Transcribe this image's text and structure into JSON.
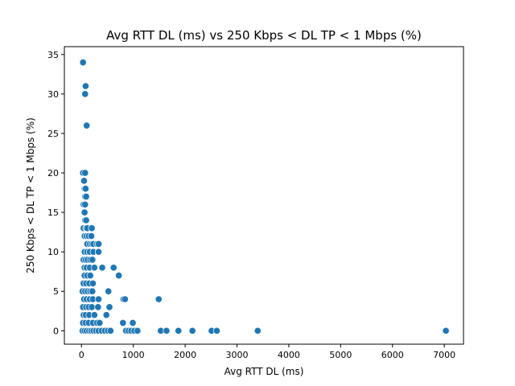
{
  "chart_data": {
    "type": "scatter",
    "title": "Avg RTT DL (ms) vs 250 Kbps < DL TP < 1 Mbps (%)",
    "xlabel": "Avg RTT DL (ms)",
    "ylabel": "250 Kbps < DL TP < 1 Mbps (%)",
    "xlim": [
      -330,
      7370
    ],
    "ylim": [
      -1.7,
      36.0
    ],
    "xticks": [
      0,
      1000,
      2000,
      3000,
      4000,
      5000,
      6000,
      7000
    ],
    "yticks": [
      0,
      5,
      10,
      15,
      20,
      25,
      30,
      35
    ],
    "grid": false,
    "marker_color": "#1f77b4",
    "marker_edge_color": "#ffffff",
    "points": [
      [
        30,
        34
      ],
      [
        80,
        31
      ],
      [
        70,
        30
      ],
      [
        100,
        26
      ],
      [
        30,
        20
      ],
      [
        70,
        20
      ],
      [
        50,
        19
      ],
      [
        60,
        18
      ],
      [
        80,
        18
      ],
      [
        70,
        17
      ],
      [
        90,
        17
      ],
      [
        40,
        16
      ],
      [
        70,
        16
      ],
      [
        60,
        15
      ],
      [
        70,
        14
      ],
      [
        90,
        14
      ],
      [
        40,
        13
      ],
      [
        90,
        13
      ],
      [
        110,
        13
      ],
      [
        200,
        13
      ],
      [
        60,
        12
      ],
      [
        100,
        12
      ],
      [
        140,
        12
      ],
      [
        190,
        12
      ],
      [
        110,
        11
      ],
      [
        160,
        11
      ],
      [
        200,
        11
      ],
      [
        230,
        11
      ],
      [
        300,
        11
      ],
      [
        330,
        11
      ],
      [
        60,
        10
      ],
      [
        110,
        10
      ],
      [
        160,
        10
      ],
      [
        230,
        10
      ],
      [
        330,
        10
      ],
      [
        40,
        9
      ],
      [
        80,
        9
      ],
      [
        120,
        9
      ],
      [
        170,
        9
      ],
      [
        210,
        9
      ],
      [
        60,
        8
      ],
      [
        100,
        8
      ],
      [
        160,
        8
      ],
      [
        250,
        8
      ],
      [
        400,
        8
      ],
      [
        620,
        8
      ],
      [
        60,
        7
      ],
      [
        110,
        7
      ],
      [
        170,
        7
      ],
      [
        720,
        7
      ],
      [
        40,
        6
      ],
      [
        90,
        6
      ],
      [
        150,
        6
      ],
      [
        220,
        6
      ],
      [
        20,
        5
      ],
      [
        70,
        5
      ],
      [
        120,
        5
      ],
      [
        170,
        5
      ],
      [
        210,
        5
      ],
      [
        520,
        5
      ],
      [
        50,
        4
      ],
      [
        100,
        4
      ],
      [
        160,
        4
      ],
      [
        220,
        4
      ],
      [
        330,
        4
      ],
      [
        810,
        4
      ],
      [
        840,
        4
      ],
      [
        1490,
        4
      ],
      [
        30,
        3
      ],
      [
        90,
        3
      ],
      [
        140,
        3
      ],
      [
        200,
        3
      ],
      [
        320,
        3
      ],
      [
        540,
        3
      ],
      [
        40,
        2
      ],
      [
        80,
        2
      ],
      [
        150,
        2
      ],
      [
        250,
        2
      ],
      [
        480,
        2
      ],
      [
        30,
        1
      ],
      [
        80,
        1
      ],
      [
        140,
        1
      ],
      [
        220,
        1
      ],
      [
        300,
        1
      ],
      [
        350,
        1
      ],
      [
        800,
        1
      ],
      [
        990,
        1
      ],
      [
        20,
        0
      ],
      [
        60,
        0
      ],
      [
        100,
        0
      ],
      [
        150,
        0
      ],
      [
        190,
        0
      ],
      [
        230,
        0
      ],
      [
        280,
        0
      ],
      [
        330,
        0
      ],
      [
        390,
        0
      ],
      [
        450,
        0
      ],
      [
        510,
        0
      ],
      [
        560,
        0
      ],
      [
        860,
        0
      ],
      [
        910,
        0
      ],
      [
        960,
        0
      ],
      [
        1020,
        0
      ],
      [
        1080,
        0
      ],
      [
        1530,
        0
      ],
      [
        1640,
        0
      ],
      [
        1870,
        0
      ],
      [
        2140,
        0
      ],
      [
        2510,
        0
      ],
      [
        2610,
        0
      ],
      [
        3400,
        0
      ],
      [
        7030,
        0
      ]
    ]
  }
}
